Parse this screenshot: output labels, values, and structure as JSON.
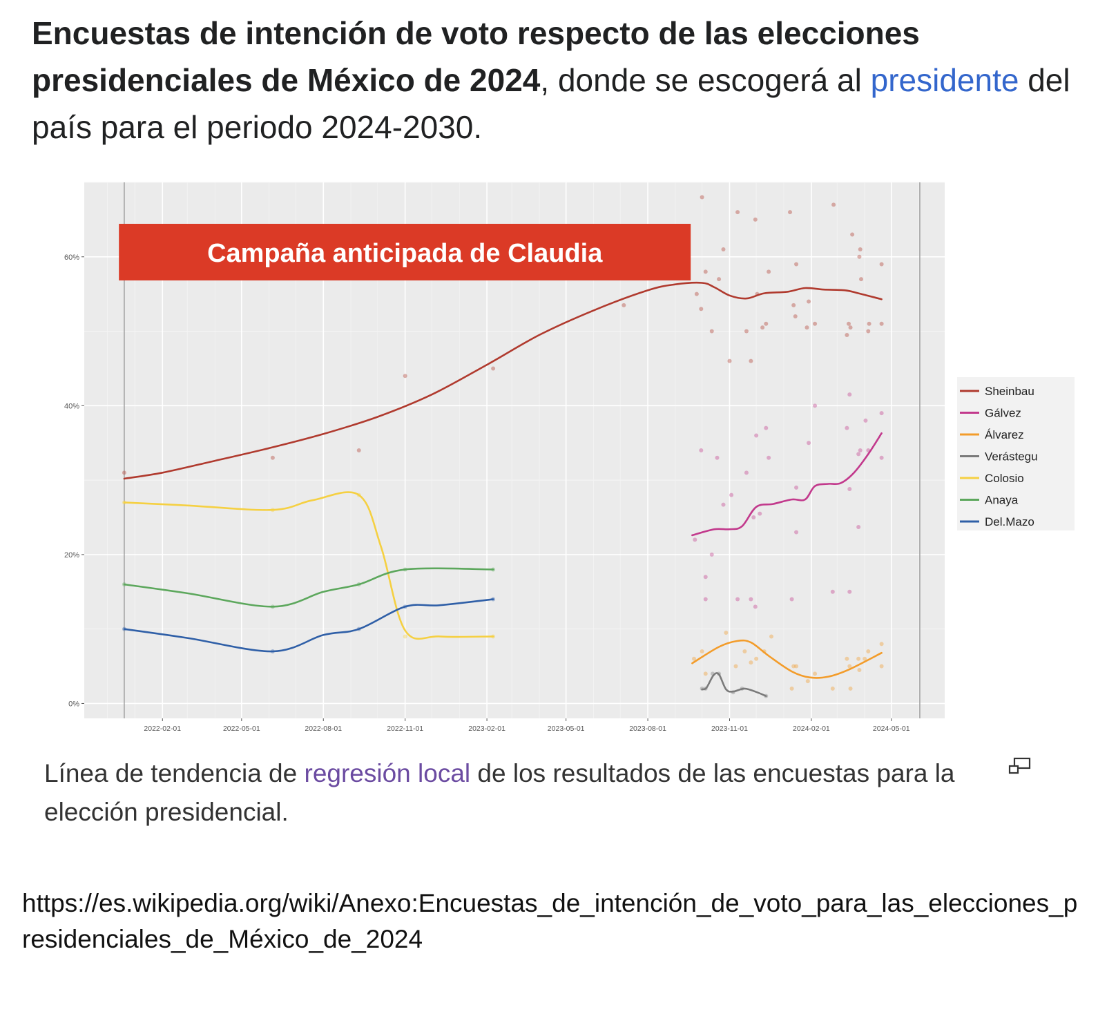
{
  "headline": {
    "bold_text": "Encuestas de intención de voto respecto de las elecciones presidenciales de México de 2024",
    "text_after_bold": ", donde se escogerá al ",
    "link_text": "presidente",
    "text_end": " del país para el periodo 2024-2030."
  },
  "banner": {
    "label": "Campaña anticipada de Claudia",
    "color": "#db3a26"
  },
  "caption": {
    "text_before": "Línea de tendencia de ",
    "link_text": "regresión local",
    "text_after": " de los resultados de las encuestas para la elección presidencial."
  },
  "enlarge_icon": "enlarge-icon",
  "source_url": "https://es.wikipedia.org/wiki/Anexo:Encuestas_de_intención_de_voto_para_las_elecciones_presidenciales_de_México_de_2024",
  "chart_data": {
    "type": "line",
    "title": "",
    "xlabel": "",
    "ylabel": "",
    "x_axis": "date",
    "xlim": [
      "2021-11-05",
      "2024-06-30"
    ],
    "ylim": [
      -2,
      70
    ],
    "y_ticks": [
      0,
      20,
      40,
      60
    ],
    "y_tick_labels": [
      "0%",
      "20%",
      "40%",
      "60%"
    ],
    "x_ticks": [
      "2022-02-01",
      "2022-05-01",
      "2022-08-01",
      "2022-11-01",
      "2023-02-01",
      "2023-05-01",
      "2023-08-01",
      "2023-11-01",
      "2024-02-01",
      "2024-05-01"
    ],
    "x_tick_labels": [
      "2022-02-01",
      "2022-05-01",
      "2022-08-01",
      "2022-11-01",
      "2023-02-01",
      "2023-05-01",
      "2023-08-01",
      "2023-11-01",
      "2024-02-01",
      "2024-05-01"
    ],
    "vertical_lines": [
      "2021-12-20",
      "2024-06-02"
    ],
    "grid": true,
    "legend_position": "right",
    "series": [
      {
        "name": "Sheinbaum",
        "legend_label": "Sheinbau",
        "color": "#b03a2e",
        "trend": [
          [
            "2021-12-20",
            30.2
          ],
          [
            "2022-02-01",
            31.0
          ],
          [
            "2022-04-01",
            32.6
          ],
          [
            "2022-06-01",
            34.3
          ],
          [
            "2022-08-01",
            36.2
          ],
          [
            "2022-10-01",
            38.5
          ],
          [
            "2022-12-01",
            41.5
          ],
          [
            "2023-02-01",
            45.5
          ],
          [
            "2023-04-01",
            49.5
          ],
          [
            "2023-06-01",
            52.8
          ],
          [
            "2023-08-01",
            55.5
          ],
          [
            "2023-09-01",
            56.3
          ],
          [
            "2023-10-01",
            56.5
          ],
          [
            "2023-10-15",
            55.9
          ],
          [
            "2023-11-01",
            54.8
          ],
          [
            "2023-11-20",
            54.4
          ],
          [
            "2023-12-10",
            55.1
          ],
          [
            "2024-01-05",
            55.3
          ],
          [
            "2024-01-25",
            55.8
          ],
          [
            "2024-02-15",
            55.6
          ],
          [
            "2024-03-10",
            55.5
          ],
          [
            "2024-03-25",
            55.1
          ],
          [
            "2024-04-20",
            54.3
          ]
        ],
        "points": [
          [
            "2021-12-20",
            31
          ],
          [
            "2022-06-05",
            33
          ],
          [
            "2022-09-10",
            34
          ],
          [
            "2022-11-01",
            44
          ],
          [
            "2023-02-08",
            45
          ],
          [
            "2023-07-05",
            53.5
          ],
          [
            "2023-09-25",
            55
          ],
          [
            "2023-09-30",
            53
          ],
          [
            "2023-10-05",
            58
          ],
          [
            "2023-10-01",
            68
          ],
          [
            "2023-10-12",
            50
          ],
          [
            "2023-10-20",
            57
          ],
          [
            "2023-10-25",
            61
          ],
          [
            "2023-11-01",
            46
          ],
          [
            "2023-11-10",
            66
          ],
          [
            "2023-11-20",
            50
          ],
          [
            "2023-11-25",
            46
          ],
          [
            "2023-11-30",
            65
          ],
          [
            "2023-12-02",
            55
          ],
          [
            "2023-12-08",
            50.5
          ],
          [
            "2023-12-12",
            51
          ],
          [
            "2023-12-15",
            58
          ],
          [
            "2024-01-08",
            66
          ],
          [
            "2024-01-12",
            53.5
          ],
          [
            "2024-01-14",
            52
          ],
          [
            "2024-01-15",
            59
          ],
          [
            "2024-01-27",
            50.5
          ],
          [
            "2024-01-29",
            54
          ],
          [
            "2024-02-05",
            51
          ],
          [
            "2024-02-26",
            67
          ],
          [
            "2024-03-12",
            49.5
          ],
          [
            "2024-03-14",
            51
          ],
          [
            "2024-03-16",
            50.5
          ],
          [
            "2024-03-18",
            63
          ],
          [
            "2024-03-26",
            60
          ],
          [
            "2024-03-27",
            61
          ],
          [
            "2024-03-28",
            57
          ],
          [
            "2024-04-05",
            50
          ],
          [
            "2024-04-06",
            51
          ],
          [
            "2024-04-20",
            59
          ],
          [
            "2024-04-20",
            51
          ]
        ]
      },
      {
        "name": "Gálvez",
        "legend_label": "Gálvez",
        "color": "#c2398c",
        "trend": [
          [
            "2023-09-20",
            22.6
          ],
          [
            "2023-10-15",
            23.4
          ],
          [
            "2023-11-01",
            23.4
          ],
          [
            "2023-11-15",
            23.8
          ],
          [
            "2023-12-01",
            26.4
          ],
          [
            "2023-12-20",
            26.8
          ],
          [
            "2024-01-10",
            27.4
          ],
          [
            "2024-01-25",
            27.4
          ],
          [
            "2024-02-05",
            29.2
          ],
          [
            "2024-02-20",
            29.5
          ],
          [
            "2024-03-05",
            29.6
          ],
          [
            "2024-03-20",
            31.0
          ],
          [
            "2024-04-05",
            33.5
          ],
          [
            "2024-04-20",
            36.3
          ]
        ],
        "points": [
          [
            "2023-09-23",
            22
          ],
          [
            "2023-09-30",
            34
          ],
          [
            "2023-10-05",
            17
          ],
          [
            "2023-10-05",
            14
          ],
          [
            "2023-10-12",
            20
          ],
          [
            "2023-10-18",
            33
          ],
          [
            "2023-10-25",
            26.7
          ],
          [
            "2023-11-03",
            28
          ],
          [
            "2023-11-10",
            14
          ],
          [
            "2023-11-20",
            31
          ],
          [
            "2023-11-25",
            14
          ],
          [
            "2023-11-28",
            25
          ],
          [
            "2023-11-30",
            13
          ],
          [
            "2023-12-01",
            36
          ],
          [
            "2023-12-05",
            25.5
          ],
          [
            "2023-12-12",
            37
          ],
          [
            "2023-12-15",
            33
          ],
          [
            "2024-01-10",
            14
          ],
          [
            "2024-01-15",
            29
          ],
          [
            "2024-01-15",
            23
          ],
          [
            "2024-01-29",
            35
          ],
          [
            "2024-02-05",
            40
          ],
          [
            "2024-02-25",
            15
          ],
          [
            "2024-03-12",
            37
          ],
          [
            "2024-03-15",
            41.5
          ],
          [
            "2024-03-15",
            28.8
          ],
          [
            "2024-03-15",
            15
          ],
          [
            "2024-03-25",
            23.7
          ],
          [
            "2024-03-25",
            33.5
          ],
          [
            "2024-03-27",
            34
          ],
          [
            "2024-04-02",
            38
          ],
          [
            "2024-04-05",
            34
          ],
          [
            "2024-04-20",
            39
          ],
          [
            "2024-04-20",
            33
          ]
        ]
      },
      {
        "name": "Álvarez",
        "legend_label": "Álvarez",
        "color": "#f39c2a",
        "trend": [
          [
            "2023-09-20",
            5.4
          ],
          [
            "2023-10-20",
            7.6
          ],
          [
            "2023-11-10",
            8.4
          ],
          [
            "2023-11-25",
            8.2
          ],
          [
            "2023-12-15",
            6.4
          ],
          [
            "2024-01-10",
            4.3
          ],
          [
            "2024-01-30",
            3.5
          ],
          [
            "2024-02-20",
            3.6
          ],
          [
            "2024-03-15",
            4.6
          ],
          [
            "2024-04-20",
            6.8
          ]
        ],
        "points": [
          [
            "2023-09-22",
            6
          ],
          [
            "2023-10-01",
            7
          ],
          [
            "2023-10-05",
            4
          ],
          [
            "2023-10-28",
            9.5
          ],
          [
            "2023-11-08",
            5
          ],
          [
            "2023-11-18",
            7
          ],
          [
            "2023-11-25",
            5.5
          ],
          [
            "2023-12-01",
            6
          ],
          [
            "2023-12-10",
            7
          ],
          [
            "2023-12-18",
            9
          ],
          [
            "2024-01-10",
            2
          ],
          [
            "2024-01-12",
            5
          ],
          [
            "2024-01-15",
            5
          ],
          [
            "2024-01-28",
            3
          ],
          [
            "2024-02-05",
            4
          ],
          [
            "2024-02-25",
            2
          ],
          [
            "2024-03-12",
            6
          ],
          [
            "2024-03-15",
            5
          ],
          [
            "2024-03-16",
            2
          ],
          [
            "2024-03-25",
            6
          ],
          [
            "2024-03-26",
            4.5
          ],
          [
            "2024-04-01",
            6
          ],
          [
            "2024-04-05",
            7
          ],
          [
            "2024-04-20",
            5
          ],
          [
            "2024-04-20",
            8
          ]
        ]
      },
      {
        "name": "Verástegui",
        "legend_label": "Verástegu",
        "color": "#7a7a7a",
        "trend": [
          [
            "2023-10-01",
            1.9
          ],
          [
            "2023-10-06",
            2.1
          ],
          [
            "2023-10-14",
            3.8
          ],
          [
            "2023-10-20",
            3.9
          ],
          [
            "2023-10-28",
            1.9
          ],
          [
            "2023-11-05",
            1.6
          ],
          [
            "2023-11-18",
            2.0
          ],
          [
            "2023-12-02",
            1.5
          ],
          [
            "2023-12-12",
            1.0
          ]
        ],
        "points": [
          [
            "2023-10-01",
            2
          ],
          [
            "2023-10-05",
            2
          ],
          [
            "2023-10-13",
            4
          ],
          [
            "2023-10-20",
            4
          ],
          [
            "2023-11-05",
            1.5
          ],
          [
            "2023-11-15",
            2
          ],
          [
            "2023-12-12",
            1
          ]
        ]
      },
      {
        "name": "Colosio",
        "legend_label": "Colosio",
        "color": "#f5d042",
        "trend": [
          [
            "2021-12-20",
            27.0
          ],
          [
            "2022-03-01",
            26.6
          ],
          [
            "2022-06-05",
            26.0
          ],
          [
            "2022-07-20",
            27.3
          ],
          [
            "2022-09-10",
            28.0
          ],
          [
            "2022-10-05",
            21.0
          ],
          [
            "2022-11-01",
            9.8
          ],
          [
            "2022-12-10",
            9.0
          ],
          [
            "2023-02-08",
            9.0
          ]
        ],
        "points": [
          [
            "2021-12-20",
            27
          ],
          [
            "2022-06-05",
            26
          ],
          [
            "2022-09-10",
            28
          ],
          [
            "2022-11-01",
            9
          ],
          [
            "2023-02-08",
            9
          ]
        ]
      },
      {
        "name": "Anaya",
        "legend_label": "Anaya",
        "color": "#5ca75c",
        "trend": [
          [
            "2021-12-20",
            16.0
          ],
          [
            "2022-03-01",
            14.8
          ],
          [
            "2022-06-05",
            13.0
          ],
          [
            "2022-08-01",
            15.0
          ],
          [
            "2022-09-10",
            16.0
          ],
          [
            "2022-11-01",
            18.0
          ],
          [
            "2023-02-08",
            18.0
          ]
        ],
        "points": [
          [
            "2021-12-20",
            16
          ],
          [
            "2022-06-05",
            13
          ],
          [
            "2022-09-10",
            16
          ],
          [
            "2022-11-01",
            18
          ],
          [
            "2023-02-08",
            18
          ]
        ]
      },
      {
        "name": "Del.Mazo",
        "legend_label": "Del.Mazo",
        "color": "#2f5fa7",
        "trend": [
          [
            "2021-12-20",
            10.0
          ],
          [
            "2022-03-01",
            8.8
          ],
          [
            "2022-06-05",
            7.0
          ],
          [
            "2022-08-01",
            9.2
          ],
          [
            "2022-09-10",
            10.0
          ],
          [
            "2022-11-01",
            13.0
          ],
          [
            "2022-12-10",
            13.2
          ],
          [
            "2023-02-08",
            14.0
          ]
        ],
        "points": [
          [
            "2021-12-20",
            10
          ],
          [
            "2022-06-05",
            7
          ],
          [
            "2022-09-10",
            10
          ],
          [
            "2022-11-01",
            13
          ],
          [
            "2023-02-08",
            14
          ]
        ]
      }
    ]
  }
}
